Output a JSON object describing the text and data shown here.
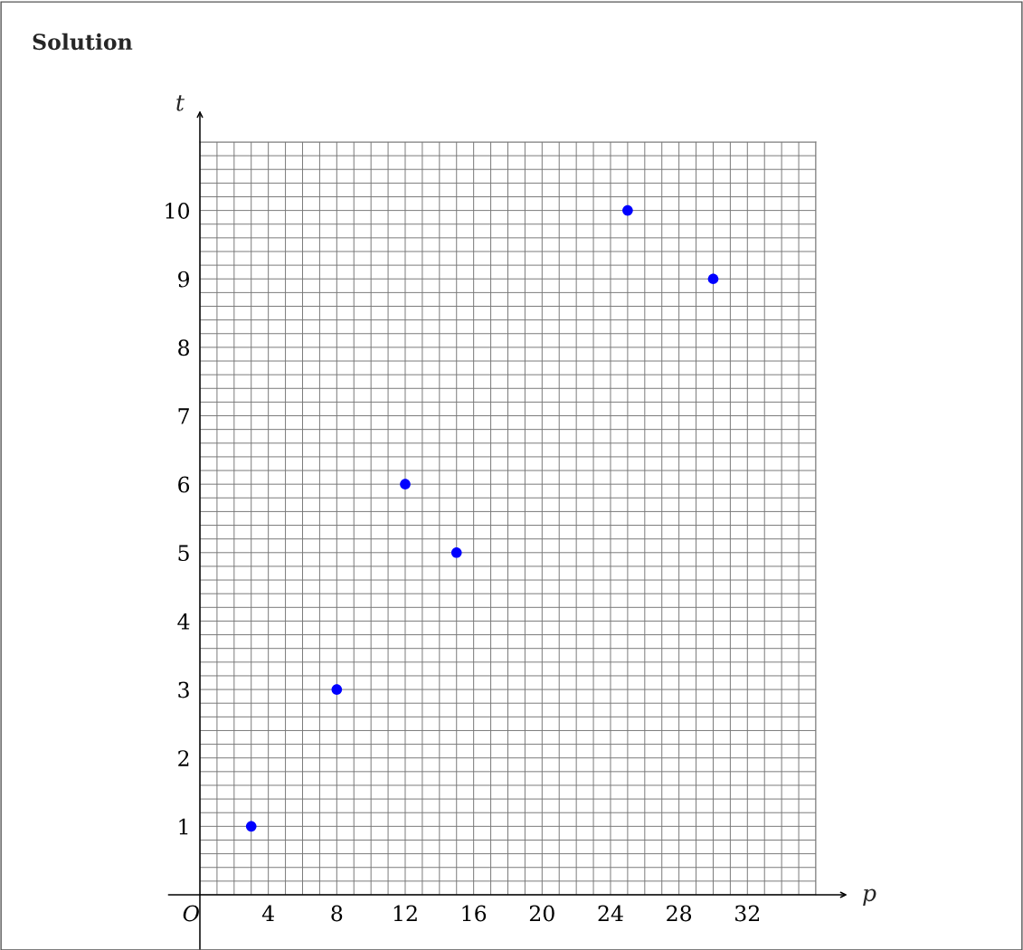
{
  "chart_data": {
    "type": "scatter",
    "title": "Solution",
    "xlabel": "p",
    "ylabel": "t",
    "x": [
      3,
      8,
      12,
      15,
      25,
      30
    ],
    "series": [
      {
        "color": "#0000ff",
        "values": [
          1,
          3,
          6,
          5,
          10,
          9
        ]
      }
    ],
    "xlim": [
      0,
      36
    ],
    "ylim": [
      0,
      11
    ],
    "xticks": [
      {
        "value": 0,
        "label": "O"
      },
      4,
      8,
      12,
      16,
      20,
      24,
      28,
      32
    ],
    "yticks": [
      1,
      2,
      3,
      4,
      5,
      6,
      7,
      8,
      9,
      10
    ],
    "grid": true,
    "marker": "circle",
    "legend": false
  }
}
